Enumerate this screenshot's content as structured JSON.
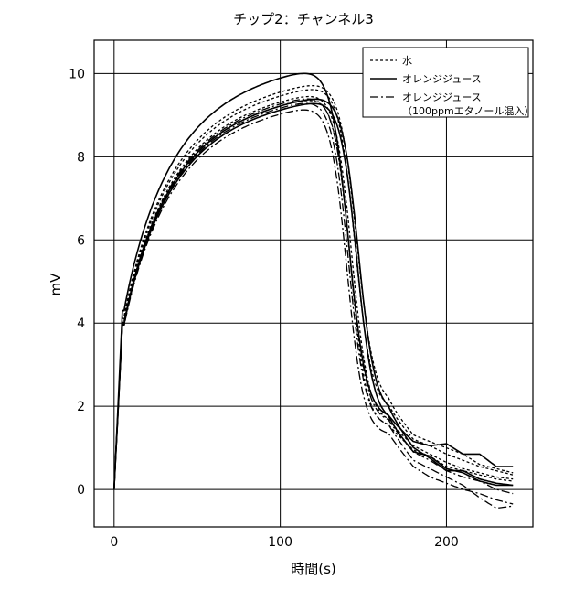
{
  "chart_data": {
    "type": "line",
    "title": "チップ2：チャンネル3",
    "xlabel": "時間(s)",
    "ylabel": "mV",
    "xlim": [
      -12,
      252
    ],
    "ylim": [
      -0.9,
      10.8
    ],
    "xticks": [
      0,
      100,
      200
    ],
    "yticks": [
      0,
      2,
      4,
      6,
      8,
      10
    ],
    "grid": true,
    "legend_position": "top-right",
    "series": [
      {
        "name": "水",
        "style": "dotted",
        "trials": [
          {
            "peak": 9.65,
            "t_drop": 143,
            "k": 0.2,
            "tail": [
              [
                165,
                1.6
              ],
              [
                180,
                1.05
              ],
              [
                190,
                0.85
              ],
              [
                200,
                0.65
              ],
              [
                210,
                0.5
              ],
              [
                220,
                0.4
              ],
              [
                230,
                0.3
              ],
              [
                240,
                0.25
              ]
            ]
          },
          {
            "peak": 9.8,
            "t_drop": 145,
            "k": 0.2,
            "tail": [
              [
                165,
                1.9
              ],
              [
                180,
                1.2
              ],
              [
                190,
                1.05
              ],
              [
                200,
                0.85
              ],
              [
                210,
                0.7
              ],
              [
                220,
                0.55
              ],
              [
                230,
                0.45
              ],
              [
                240,
                0.35
              ]
            ]
          },
          {
            "peak": 9.9,
            "t_drop": 146,
            "k": 0.19,
            "tail": [
              [
                165,
                2.0
              ],
              [
                180,
                1.3
              ],
              [
                190,
                1.15
              ],
              [
                200,
                1.0
              ],
              [
                210,
                0.85
              ],
              [
                220,
                0.6
              ],
              [
                230,
                0.5
              ],
              [
                240,
                0.4
              ]
            ]
          },
          {
            "peak": 9.55,
            "t_drop": 142,
            "k": 0.21,
            "tail": [
              [
                165,
                1.5
              ],
              [
                180,
                0.95
              ],
              [
                190,
                0.8
              ],
              [
                200,
                0.55
              ],
              [
                210,
                0.45
              ],
              [
                220,
                0.35
              ],
              [
                230,
                0.25
              ],
              [
                240,
                0.2
              ]
            ]
          }
        ]
      },
      {
        "name": "オレンジジュース",
        "style": "solid",
        "trials": [
          {
            "peak": 10.25,
            "t_drop": 141,
            "k": 0.19,
            "tail": [
              [
                165,
                1.7
              ],
              [
                180,
                1.15
              ],
              [
                190,
                1.05
              ],
              [
                200,
                1.1
              ],
              [
                210,
                0.85
              ],
              [
                220,
                0.85
              ],
              [
                230,
                0.55
              ],
              [
                240,
                0.55
              ]
            ]
          },
          {
            "peak": 9.55,
            "t_drop": 147,
            "k": 0.2,
            "tail": [
              [
                165,
                1.8
              ],
              [
                180,
                1.0
              ],
              [
                190,
                0.75
              ],
              [
                200,
                0.45
              ],
              [
                210,
                0.45
              ],
              [
                220,
                0.25
              ],
              [
                230,
                0.15
              ],
              [
                240,
                0.1
              ]
            ]
          },
          {
            "peak": 9.45,
            "t_drop": 146,
            "k": 0.2,
            "tail": [
              [
                165,
                1.6
              ],
              [
                180,
                0.9
              ],
              [
                190,
                0.8
              ],
              [
                200,
                0.5
              ],
              [
                210,
                0.4
              ],
              [
                220,
                0.2
              ],
              [
                230,
                0.1
              ],
              [
                240,
                0.1
              ]
            ]
          }
        ]
      },
      {
        "name": "オレンジジュース\n（100ppmエタノール混入）",
        "style": "dashdot",
        "trials": [
          {
            "peak": 9.35,
            "t_drop": 140,
            "k": 0.2,
            "tail": [
              [
                165,
                1.3
              ],
              [
                180,
                0.55
              ],
              [
                190,
                0.3
              ],
              [
                200,
                0.15
              ],
              [
                210,
                0.0
              ],
              [
                220,
                -0.1
              ],
              [
                230,
                -0.25
              ],
              [
                240,
                -0.35
              ]
            ]
          },
          {
            "peak": 9.5,
            "t_drop": 141,
            "k": 0.2,
            "tail": [
              [
                165,
                1.5
              ],
              [
                180,
                0.7
              ],
              [
                190,
                0.5
              ],
              [
                200,
                0.3
              ],
              [
                210,
                0.1
              ],
              [
                220,
                -0.2
              ],
              [
                230,
                -0.45
              ],
              [
                240,
                -0.4
              ]
            ]
          },
          {
            "peak": 9.6,
            "t_drop": 142,
            "k": 0.2,
            "tail": [
              [
                165,
                1.6
              ],
              [
                180,
                0.9
              ],
              [
                190,
                0.7
              ],
              [
                200,
                0.45
              ],
              [
                210,
                0.3
              ],
              [
                220,
                0.2
              ],
              [
                230,
                0.0
              ],
              [
                240,
                -0.1
              ]
            ]
          }
        ]
      }
    ]
  }
}
